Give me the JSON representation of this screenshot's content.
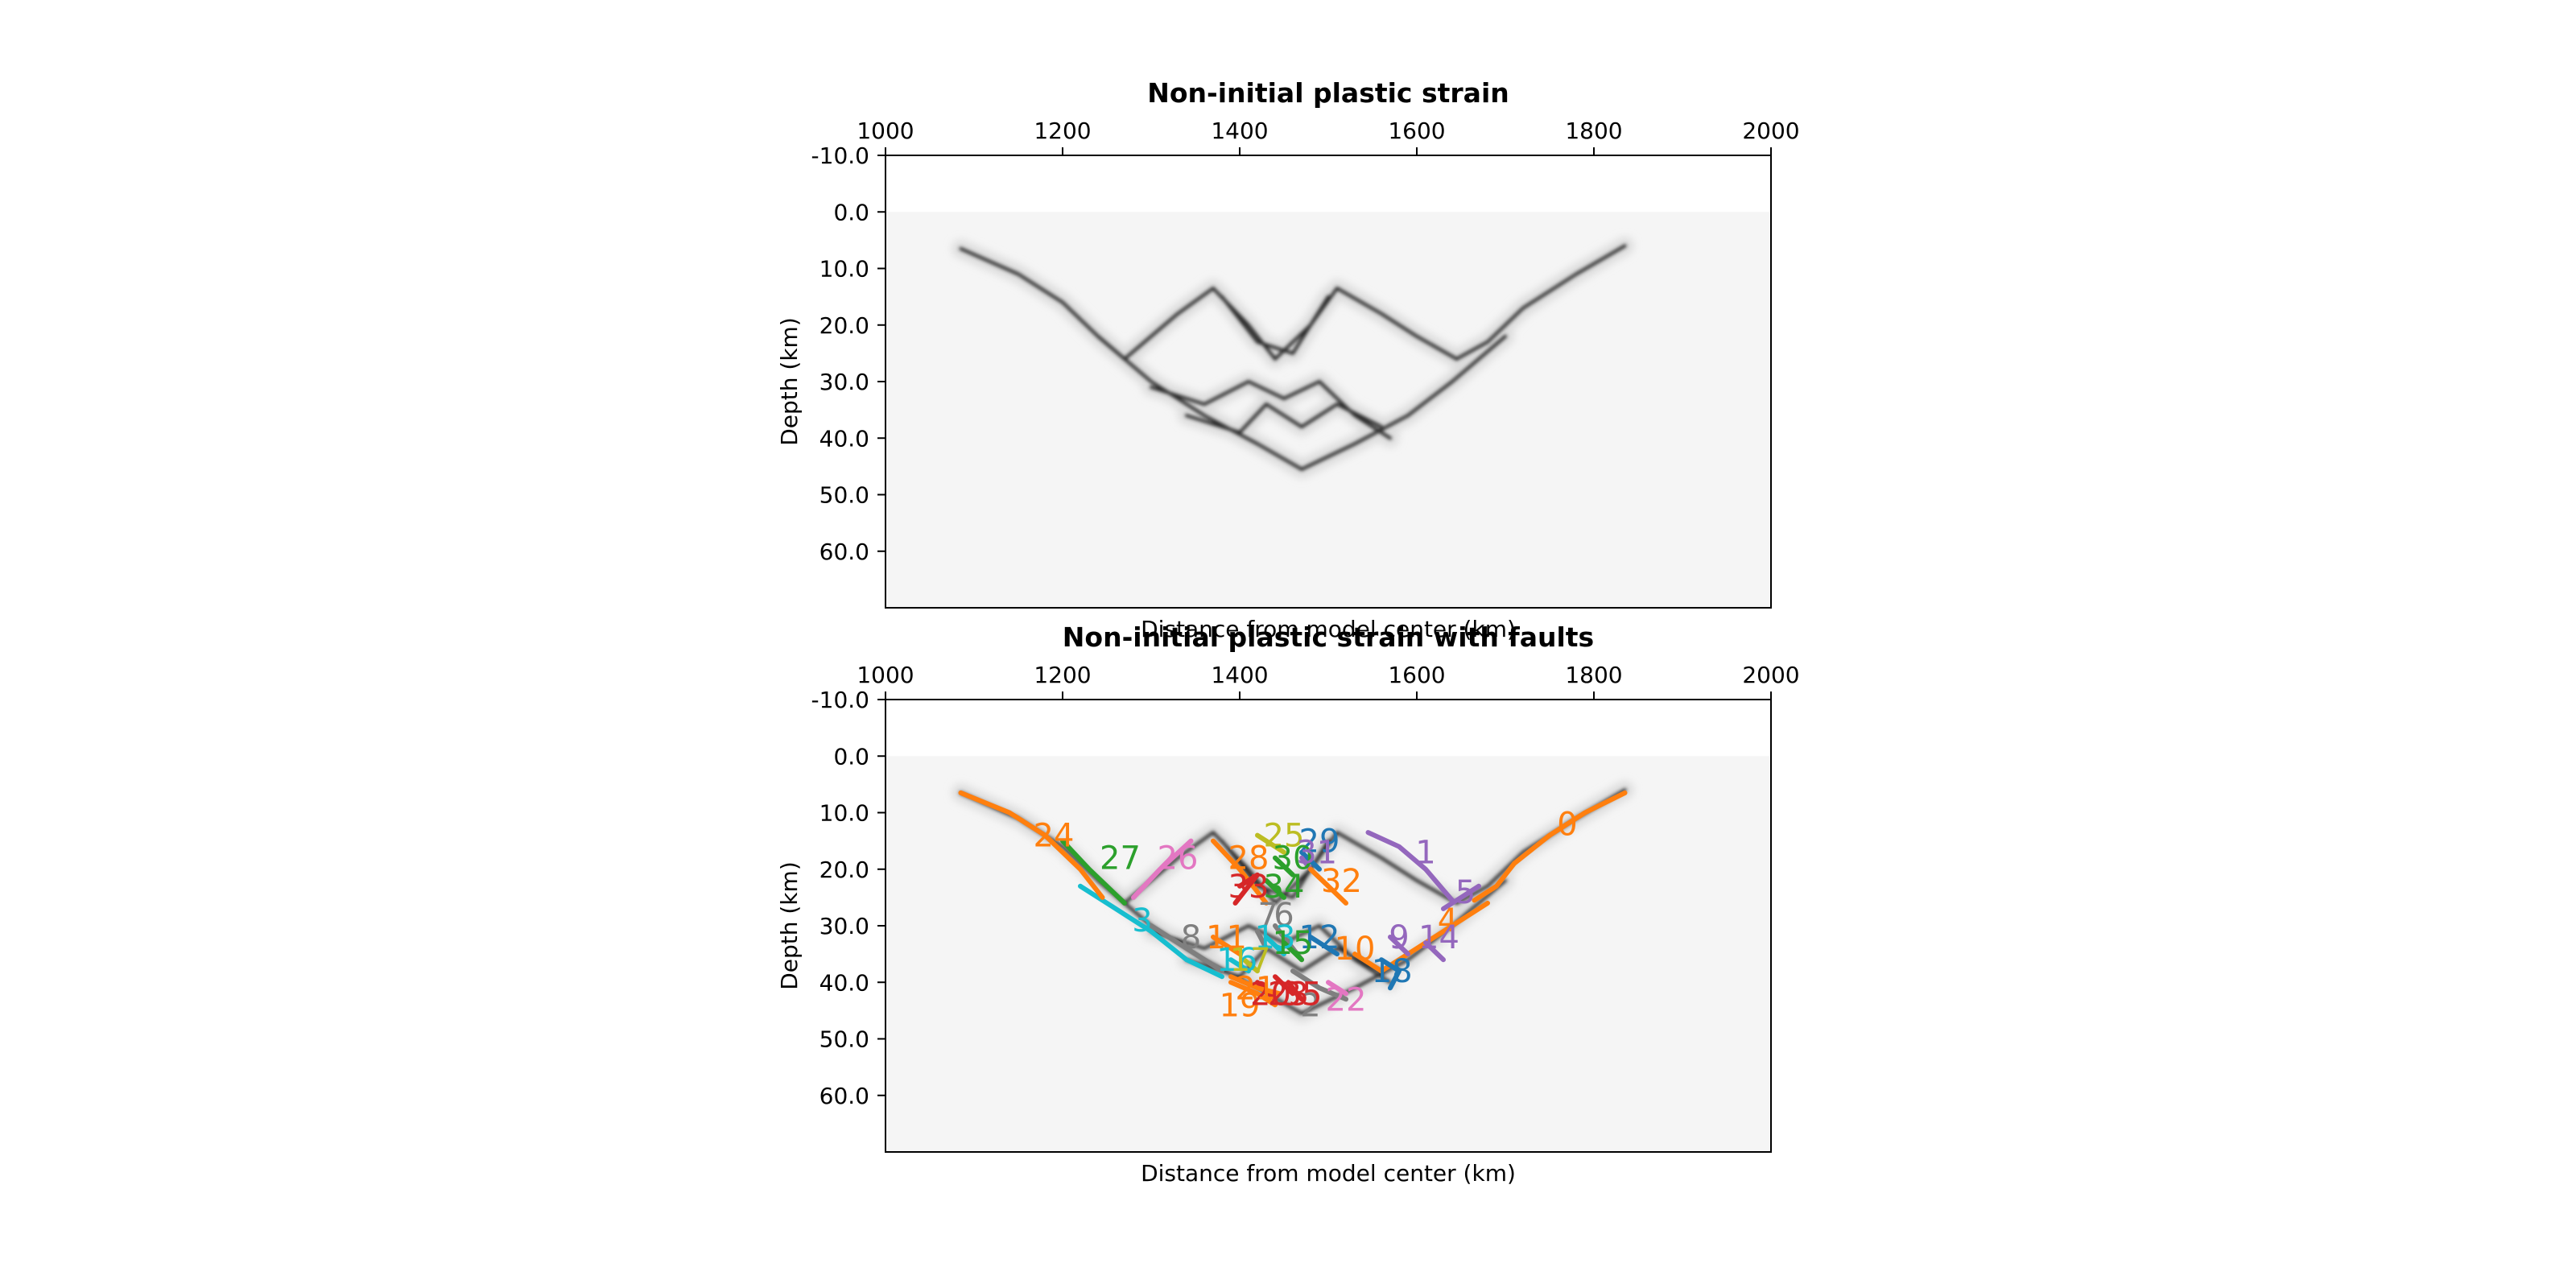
{
  "colors": {
    "background": "#ffffff",
    "plot_background": "#f5f5f5",
    "strain_dark": "#2a2a2a",
    "strain_light": "#dcdcdc",
    "fault_palette": [
      "#1f77b4",
      "#ff7f0e",
      "#2ca02c",
      "#d62728",
      "#9467bd",
      "#8c564b",
      "#e377c2",
      "#7f7f7f",
      "#bcbd22",
      "#17becf"
    ]
  },
  "chart_data": [
    {
      "type": "heatmap",
      "title": "Non-initial plastic strain",
      "xlabel": "Distance from model center (km)",
      "ylabel": "Depth (km)",
      "xlim": [
        1000,
        2000
      ],
      "ylim": [
        70,
        -10
      ],
      "x_ticks": [
        1000,
        1200,
        1400,
        1600,
        1800,
        2000
      ],
      "x_tick_labels": [
        "1000",
        "1200",
        "1400",
        "1600",
        "1800",
        "2000"
      ],
      "y_ticks": [
        -10,
        0,
        10,
        20,
        30,
        40,
        50,
        60
      ],
      "y_tick_labels": [
        "-10.0",
        "0.0",
        "10.0",
        "20.0",
        "30.0",
        "40.0",
        "50.0",
        "60.0"
      ],
      "model_top_depth": 0,
      "strain_bands": [
        {
          "id": "left-outer",
          "points": [
            [
              1085,
              6.5
            ],
            [
              1150,
              11
            ],
            [
              1200,
              16
            ],
            [
              1240,
              22
            ],
            [
              1270,
              26
            ]
          ]
        },
        {
          "id": "right-outer",
          "points": [
            [
              1835,
              6
            ],
            [
              1780,
              11
            ],
            [
              1720,
              17
            ],
            [
              1680,
              23
            ],
            [
              1645,
              26
            ]
          ]
        },
        {
          "id": "upper-w-1",
          "points": [
            [
              1270,
              26
            ],
            [
              1330,
              18
            ],
            [
              1370,
              13.5
            ],
            [
              1410,
              20
            ],
            [
              1440,
              26
            ]
          ]
        },
        {
          "id": "upper-w-2",
          "points": [
            [
              1440,
              26
            ],
            [
              1480,
              20
            ],
            [
              1510,
              13.5
            ],
            [
              1560,
              18
            ],
            [
              1600,
              22
            ],
            [
              1645,
              26
            ]
          ]
        },
        {
          "id": "upper-x",
          "points": [
            [
              1380,
              15
            ],
            [
              1420,
              23
            ],
            [
              1460,
              25
            ],
            [
              1500,
              15
            ]
          ]
        },
        {
          "id": "lower-left",
          "points": [
            [
              1240,
              22
            ],
            [
              1300,
              30
            ],
            [
              1360,
              36
            ],
            [
              1420,
              41
            ],
            [
              1470,
              45.5
            ]
          ]
        },
        {
          "id": "lower-right",
          "points": [
            [
              1700,
              22
            ],
            [
              1640,
              30
            ],
            [
              1590,
              36
            ],
            [
              1530,
              41
            ],
            [
              1470,
              45.5
            ]
          ]
        },
        {
          "id": "lower-inner-1",
          "points": [
            [
              1300,
              31
            ],
            [
              1360,
              34
            ],
            [
              1410,
              30
            ],
            [
              1450,
              33
            ],
            [
              1490,
              30
            ],
            [
              1530,
              36
            ],
            [
              1570,
              40
            ]
          ]
        },
        {
          "id": "lower-inner-2",
          "points": [
            [
              1340,
              36
            ],
            [
              1400,
              39
            ],
            [
              1430,
              34
            ],
            [
              1470,
              38
            ],
            [
              1510,
              34
            ],
            [
              1560,
              38
            ]
          ]
        }
      ]
    },
    {
      "type": "line",
      "title": "Non-initial plastic strain with faults",
      "xlabel": "Distance from model center (km)",
      "ylabel": "Depth (km)",
      "xlim": [
        1000,
        2000
      ],
      "ylim": [
        70,
        -10
      ],
      "x_ticks": [
        1000,
        1200,
        1400,
        1600,
        1800,
        2000
      ],
      "x_tick_labels": [
        "1000",
        "1200",
        "1400",
        "1600",
        "1800",
        "2000"
      ],
      "y_ticks": [
        -10,
        0,
        10,
        20,
        30,
        40,
        50,
        60
      ],
      "y_tick_labels": [
        "-10.0",
        "0.0",
        "10.0",
        "20.0",
        "30.0",
        "40.0",
        "50.0",
        "60.0"
      ],
      "faults": [
        {
          "id": "0",
          "color": "#ff7f0e",
          "points": [
            [
              1835,
              6.5
            ],
            [
              1790,
              10
            ],
            [
              1750,
              14
            ],
            [
              1710,
              19
            ],
            [
              1690,
              23
            ],
            [
              1665,
              25.5
            ]
          ],
          "label_at": [
            1770,
            12
          ]
        },
        {
          "id": "1",
          "color": "#9467bd",
          "points": [
            [
              1545,
              13.5
            ],
            [
              1580,
              16
            ],
            [
              1610,
              20
            ],
            [
              1640,
              25.5
            ]
          ],
          "label_at": [
            1610,
            17
          ]
        },
        {
          "id": "2",
          "color": "#7f7f7f",
          "points": [
            [
              1460,
              38
            ],
            [
              1490,
              41
            ],
            [
              1520,
              43
            ]
          ],
          "label_at": [
            1480,
            44
          ]
        },
        {
          "id": "3",
          "color": "#17becf",
          "points": [
            [
              1220,
              23
            ],
            [
              1260,
              27
            ],
            [
              1300,
              31
            ],
            [
              1340,
              36
            ],
            [
              1380,
              39
            ]
          ],
          "label_at": [
            1290,
            29
          ]
        },
        {
          "id": "4",
          "color": "#ff7f0e",
          "points": [
            [
              1680,
              26
            ],
            [
              1640,
              30
            ],
            [
              1600,
              34
            ],
            [
              1560,
              38
            ]
          ],
          "label_at": [
            1635,
            29
          ]
        },
        {
          "id": "5",
          "color": "#9467bd",
          "points": [
            [
              1670,
              23
            ],
            [
              1650,
              25
            ],
            [
              1630,
              27
            ]
          ],
          "label_at": [
            1655,
            24
          ]
        },
        {
          "id": "6",
          "color": "#7f7f7f",
          "points": [
            [
              1440,
              30
            ],
            [
              1455,
              33
            ],
            [
              1470,
              36
            ]
          ],
          "label_at": [
            1450,
            28
          ]
        },
        {
          "id": "7",
          "color": "#7f7f7f",
          "points": [
            [
              1420,
              31
            ],
            [
              1430,
              34
            ]
          ],
          "label_at": [
            1432,
            28
          ]
        },
        {
          "id": "8",
          "color": "#7f7f7f",
          "points": [
            [
              1300,
              30
            ],
            [
              1340,
              34
            ],
            [
              1380,
              38
            ]
          ],
          "label_at": [
            1345,
            32
          ]
        },
        {
          "id": "9",
          "color": "#9467bd",
          "points": [
            [
              1570,
              32
            ],
            [
              1590,
              35
            ]
          ],
          "label_at": [
            1580,
            32
          ]
        },
        {
          "id": "10",
          "color": "#ff7f0e",
          "points": [
            [
              1530,
              35
            ],
            [
              1560,
              38
            ]
          ],
          "label_at": [
            1530,
            34
          ]
        },
        {
          "id": "11",
          "color": "#ff7f0e",
          "points": [
            [
              1370,
              32
            ],
            [
              1400,
              35
            ]
          ],
          "label_at": [
            1385,
            32
          ]
        },
        {
          "id": "12",
          "color": "#1f77b4",
          "points": [
            [
              1480,
              32
            ],
            [
              1510,
              35
            ]
          ],
          "label_at": [
            1490,
            32
          ]
        },
        {
          "id": "13",
          "color": "#17becf",
          "points": [
            [
              1430,
              32
            ],
            [
              1450,
              35
            ]
          ],
          "label_at": [
            1440,
            32
          ]
        },
        {
          "id": "14",
          "color": "#9467bd",
          "points": [
            [
              1610,
              33
            ],
            [
              1630,
              36
            ]
          ],
          "label_at": [
            1625,
            32
          ]
        },
        {
          "id": "15",
          "color": "#2ca02c",
          "points": [
            [
              1450,
              33
            ],
            [
              1470,
              36
            ]
          ],
          "label_at": [
            1460,
            33
          ]
        },
        {
          "id": "16",
          "color": "#17becf",
          "points": [
            [
              1390,
              36
            ],
            [
              1410,
              38
            ]
          ],
          "label_at": [
            1397,
            36
          ]
        },
        {
          "id": "17",
          "color": "#bcbd22",
          "points": [
            [
              1405,
              36
            ],
            [
              1420,
              38
            ]
          ],
          "label_at": [
            1412,
            36
          ]
        },
        {
          "id": "18",
          "color": "#1f77b4",
          "points": [
            [
              1560,
              36
            ],
            [
              1580,
              38
            ],
            [
              1570,
              41
            ]
          ],
          "label_at": [
            1572,
            38
          ]
        },
        {
          "id": "19",
          "color": "#ff7f0e",
          "points": [
            [
              1390,
              40
            ],
            [
              1420,
              42
            ],
            [
              1440,
              44
            ]
          ],
          "label_at": [
            1400,
            44
          ]
        },
        {
          "id": "20",
          "color": "#d62728",
          "points": [
            [
              1420,
              40
            ],
            [
              1440,
              43
            ]
          ],
          "label_at": [
            1435,
            42
          ]
        },
        {
          "id": "21",
          "color": "#ff7f0e",
          "points": [
            [
              1390,
              39
            ],
            [
              1420,
              41
            ],
            [
              1445,
              42
            ]
          ],
          "label_at": [
            1418,
            41
          ]
        },
        {
          "id": "22",
          "color": "#e377c2",
          "points": [
            [
              1500,
              40
            ],
            [
              1520,
              42
            ]
          ],
          "label_at": [
            1520,
            43
          ]
        },
        {
          "id": "23",
          "color": "#d62728",
          "points": [
            [
              1440,
              39
            ],
            [
              1460,
              42
            ]
          ],
          "label_at": [
            1455,
            42
          ]
        },
        {
          "id": "24",
          "color": "#ff7f0e",
          "points": [
            [
              1085,
              6.5
            ],
            [
              1140,
              10
            ],
            [
              1180,
              14
            ],
            [
              1220,
              20
            ],
            [
              1245,
              25
            ]
          ],
          "label_at": [
            1190,
            14
          ]
        },
        {
          "id": "25",
          "color": "#bcbd22",
          "points": [
            [
              1420,
              14
            ],
            [
              1450,
              17
            ]
          ],
          "label_at": [
            1450,
            14
          ]
        },
        {
          "id": "26",
          "color": "#e377c2",
          "points": [
            [
              1280,
              25
            ],
            [
              1310,
              20
            ],
            [
              1345,
              15
            ]
          ],
          "label_at": [
            1330,
            18
          ]
        },
        {
          "id": "27",
          "color": "#2ca02c",
          "points": [
            [
              1200,
              15
            ],
            [
              1230,
              20
            ],
            [
              1270,
              26
            ]
          ],
          "label_at": [
            1265,
            18
          ]
        },
        {
          "id": "28",
          "color": "#ff7f0e",
          "points": [
            [
              1370,
              15
            ],
            [
              1400,
              20
            ],
            [
              1430,
              26
            ]
          ],
          "label_at": [
            1410,
            18
          ]
        },
        {
          "id": "29",
          "color": "#1f77b4",
          "points": [
            [
              1470,
              17
            ],
            [
              1490,
              20
            ]
          ],
          "label_at": [
            1490,
            15
          ]
        },
        {
          "id": "30",
          "color": "#2ca02c",
          "points": [
            [
              1440,
              18
            ],
            [
              1460,
              21
            ]
          ],
          "label_at": [
            1460,
            18
          ]
        },
        {
          "id": "31",
          "color": "#9467bd",
          "points": [
            [
              1470,
              18
            ],
            [
              1480,
              20
            ]
          ],
          "label_at": [
            1487,
            17
          ]
        },
        {
          "id": "32",
          "color": "#ff7f0e",
          "points": [
            [
              1480,
              20
            ],
            [
              1500,
              23
            ],
            [
              1520,
              26
            ]
          ],
          "label_at": [
            1515,
            22
          ]
        },
        {
          "id": "33",
          "color": "#d62728",
          "points": [
            [
              1400,
              23
            ],
            [
              1420,
              21
            ],
            [
              1395,
              26
            ]
          ],
          "label_at": [
            1410,
            23
          ]
        },
        {
          "id": "34",
          "color": "#2ca02c",
          "points": [
            [
              1430,
              22
            ],
            [
              1450,
              25
            ]
          ],
          "label_at": [
            1450,
            23
          ]
        },
        {
          "id": "35",
          "color": "#d62728",
          "points": [
            [
              1455,
              40
            ],
            [
              1470,
              43
            ]
          ],
          "label_at": [
            1470,
            42
          ]
        }
      ]
    }
  ]
}
